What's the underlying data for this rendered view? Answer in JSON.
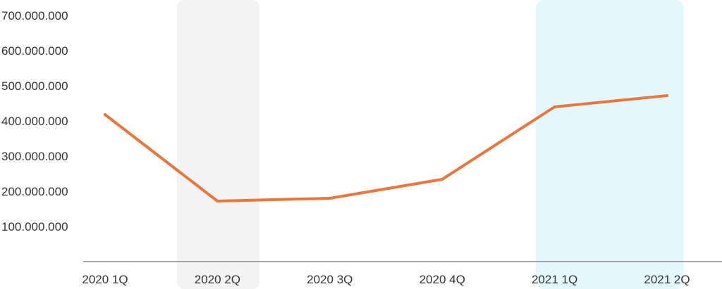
{
  "chart_data": {
    "type": "line",
    "title": "",
    "xlabel": "",
    "ylabel": "",
    "categories": [
      "2020 1Q",
      "2020 2Q",
      "2020 3Q",
      "2020 4Q",
      "2021 1Q",
      "2021 2Q"
    ],
    "series": [
      {
        "values": [
          418000000,
          172000000,
          180000000,
          234000000,
          440000000,
          472000000
        ]
      }
    ],
    "ylim": [
      0,
      700000000
    ],
    "yticks": [
      100000000,
      200000000,
      300000000,
      400000000,
      500000000,
      600000000,
      700000000
    ],
    "ytick_labels": [
      "100.000.000",
      "200.000.000",
      "300.000.000",
      "400.000.000",
      "500.000.000",
      "600.000.000",
      "700.000.000"
    ],
    "highlighted_categories": [
      {
        "category": "2020 2Q",
        "color": "#f3f3f3"
      },
      {
        "category": "2021 1Q",
        "color": "#e3f8fd"
      },
      {
        "category": "2021 2Q",
        "color": "#e3f8fd"
      }
    ],
    "line_color": "#e9773d",
    "axis_color": "#8a8a8a",
    "grid": false,
    "legend": "none"
  }
}
